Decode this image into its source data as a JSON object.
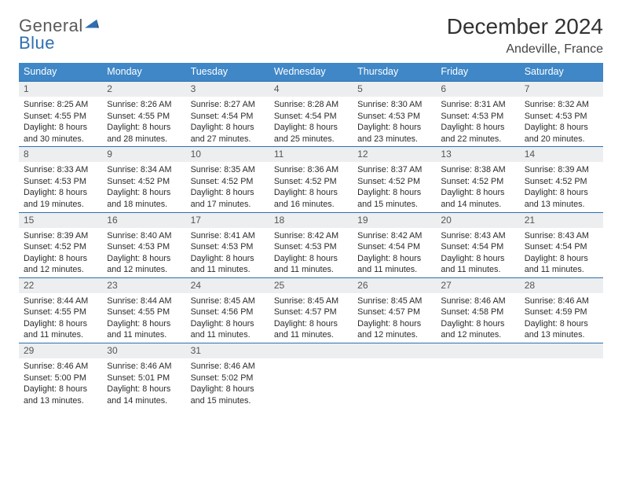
{
  "brand": {
    "word1": "General",
    "word2": "Blue"
  },
  "title": "December 2024",
  "subtitle": "Andeville, France",
  "colors": {
    "header_bg": "#3f87c7",
    "header_text": "#ffffff",
    "daynum_bg": "#eceeef",
    "daynum_border": "#2f6fb0",
    "body_text": "#2b2b2b",
    "brand_gray": "#5a5a5a",
    "brand_blue": "#2f6fb0"
  },
  "typography": {
    "title_fontsize": 28,
    "subtitle_fontsize": 16,
    "header_fontsize": 12.5,
    "daynum_fontsize": 12,
    "body_fontsize": 10.8
  },
  "layout": {
    "cols": 7,
    "rows": 5,
    "cell_min_height": 82
  },
  "day_headers": [
    "Sunday",
    "Monday",
    "Tuesday",
    "Wednesday",
    "Thursday",
    "Friday",
    "Saturday"
  ],
  "weeks": [
    [
      {
        "n": "1",
        "sr": "8:25 AM",
        "ss": "4:55 PM",
        "dl": "8 hours and 30 minutes."
      },
      {
        "n": "2",
        "sr": "8:26 AM",
        "ss": "4:55 PM",
        "dl": "8 hours and 28 minutes."
      },
      {
        "n": "3",
        "sr": "8:27 AM",
        "ss": "4:54 PM",
        "dl": "8 hours and 27 minutes."
      },
      {
        "n": "4",
        "sr": "8:28 AM",
        "ss": "4:54 PM",
        "dl": "8 hours and 25 minutes."
      },
      {
        "n": "5",
        "sr": "8:30 AM",
        "ss": "4:53 PM",
        "dl": "8 hours and 23 minutes."
      },
      {
        "n": "6",
        "sr": "8:31 AM",
        "ss": "4:53 PM",
        "dl": "8 hours and 22 minutes."
      },
      {
        "n": "7",
        "sr": "8:32 AM",
        "ss": "4:53 PM",
        "dl": "8 hours and 20 minutes."
      }
    ],
    [
      {
        "n": "8",
        "sr": "8:33 AM",
        "ss": "4:53 PM",
        "dl": "8 hours and 19 minutes."
      },
      {
        "n": "9",
        "sr": "8:34 AM",
        "ss": "4:52 PM",
        "dl": "8 hours and 18 minutes."
      },
      {
        "n": "10",
        "sr": "8:35 AM",
        "ss": "4:52 PM",
        "dl": "8 hours and 17 minutes."
      },
      {
        "n": "11",
        "sr": "8:36 AM",
        "ss": "4:52 PM",
        "dl": "8 hours and 16 minutes."
      },
      {
        "n": "12",
        "sr": "8:37 AM",
        "ss": "4:52 PM",
        "dl": "8 hours and 15 minutes."
      },
      {
        "n": "13",
        "sr": "8:38 AM",
        "ss": "4:52 PM",
        "dl": "8 hours and 14 minutes."
      },
      {
        "n": "14",
        "sr": "8:39 AM",
        "ss": "4:52 PM",
        "dl": "8 hours and 13 minutes."
      }
    ],
    [
      {
        "n": "15",
        "sr": "8:39 AM",
        "ss": "4:52 PM",
        "dl": "8 hours and 12 minutes."
      },
      {
        "n": "16",
        "sr": "8:40 AM",
        "ss": "4:53 PM",
        "dl": "8 hours and 12 minutes."
      },
      {
        "n": "17",
        "sr": "8:41 AM",
        "ss": "4:53 PM",
        "dl": "8 hours and 11 minutes."
      },
      {
        "n": "18",
        "sr": "8:42 AM",
        "ss": "4:53 PM",
        "dl": "8 hours and 11 minutes."
      },
      {
        "n": "19",
        "sr": "8:42 AM",
        "ss": "4:54 PM",
        "dl": "8 hours and 11 minutes."
      },
      {
        "n": "20",
        "sr": "8:43 AM",
        "ss": "4:54 PM",
        "dl": "8 hours and 11 minutes."
      },
      {
        "n": "21",
        "sr": "8:43 AM",
        "ss": "4:54 PM",
        "dl": "8 hours and 11 minutes."
      }
    ],
    [
      {
        "n": "22",
        "sr": "8:44 AM",
        "ss": "4:55 PM",
        "dl": "8 hours and 11 minutes."
      },
      {
        "n": "23",
        "sr": "8:44 AM",
        "ss": "4:55 PM",
        "dl": "8 hours and 11 minutes."
      },
      {
        "n": "24",
        "sr": "8:45 AM",
        "ss": "4:56 PM",
        "dl": "8 hours and 11 minutes."
      },
      {
        "n": "25",
        "sr": "8:45 AM",
        "ss": "4:57 PM",
        "dl": "8 hours and 11 minutes."
      },
      {
        "n": "26",
        "sr": "8:45 AM",
        "ss": "4:57 PM",
        "dl": "8 hours and 12 minutes."
      },
      {
        "n": "27",
        "sr": "8:46 AM",
        "ss": "4:58 PM",
        "dl": "8 hours and 12 minutes."
      },
      {
        "n": "28",
        "sr": "8:46 AM",
        "ss": "4:59 PM",
        "dl": "8 hours and 13 minutes."
      }
    ],
    [
      {
        "n": "29",
        "sr": "8:46 AM",
        "ss": "5:00 PM",
        "dl": "8 hours and 13 minutes."
      },
      {
        "n": "30",
        "sr": "8:46 AM",
        "ss": "5:01 PM",
        "dl": "8 hours and 14 minutes."
      },
      {
        "n": "31",
        "sr": "8:46 AM",
        "ss": "5:02 PM",
        "dl": "8 hours and 15 minutes."
      },
      {
        "empty": true
      },
      {
        "empty": true
      },
      {
        "empty": true
      },
      {
        "empty": true
      }
    ]
  ],
  "labels": {
    "sunrise": "Sunrise: ",
    "sunset": "Sunset: ",
    "daylight": "Daylight: "
  }
}
